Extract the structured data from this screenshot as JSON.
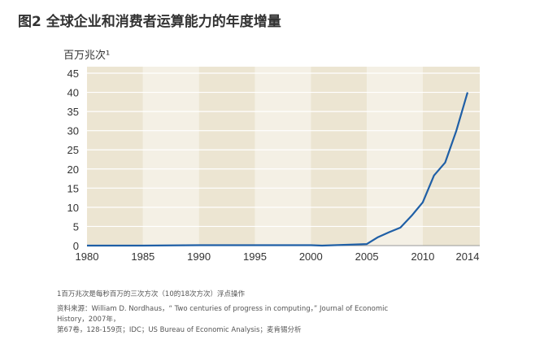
{
  "title": "图2  全球企业和消费者运算能力的年度增量",
  "footnote": "1百万兆次是每秒百万的三次方次（10的18次方次）浮点操作",
  "source_line1": "资料来源：William D. Nordhaus，“ Two centuries of progress in computing，” Journal of Economic History，2007年，",
  "source_line2": "第67卷，128-159页；IDC；US Bureau of Economic Analysis；麦肯锡分析",
  "colors": {
    "line": "#1f5fa6",
    "band_dark": "#ece5d2",
    "band_light": "#f4f0e5",
    "grid": "#ffffff"
  },
  "chart_data": {
    "type": "line",
    "title": "全球企业和消费者运算能力的年度增量",
    "ylabel": "百万兆次¹",
    "xlabel": "",
    "xlim": [
      1980,
      2014
    ],
    "ylim": [
      0,
      45
    ],
    "x_ticks": [
      "1980",
      "1985",
      "1990",
      "1995",
      "2000",
      "2005",
      "2010",
      "2014"
    ],
    "y_ticks": [
      "0",
      "5",
      "10",
      "15",
      "20",
      "25",
      "30",
      "35",
      "40",
      "45"
    ],
    "grid": true,
    "series": [
      {
        "name": "年度增量",
        "x": [
          1980,
          1985,
          1990,
          1995,
          2000,
          2001,
          2004,
          2005,
          2006,
          2007,
          2008,
          2009,
          2010,
          2011,
          2012,
          2013,
          2014
        ],
        "y": [
          0,
          0,
          0.1,
          0.1,
          0.1,
          0,
          0.3,
          0.4,
          2.2,
          3.5,
          4.7,
          7.8,
          11.3,
          18.3,
          21.7,
          30,
          40
        ]
      }
    ]
  }
}
